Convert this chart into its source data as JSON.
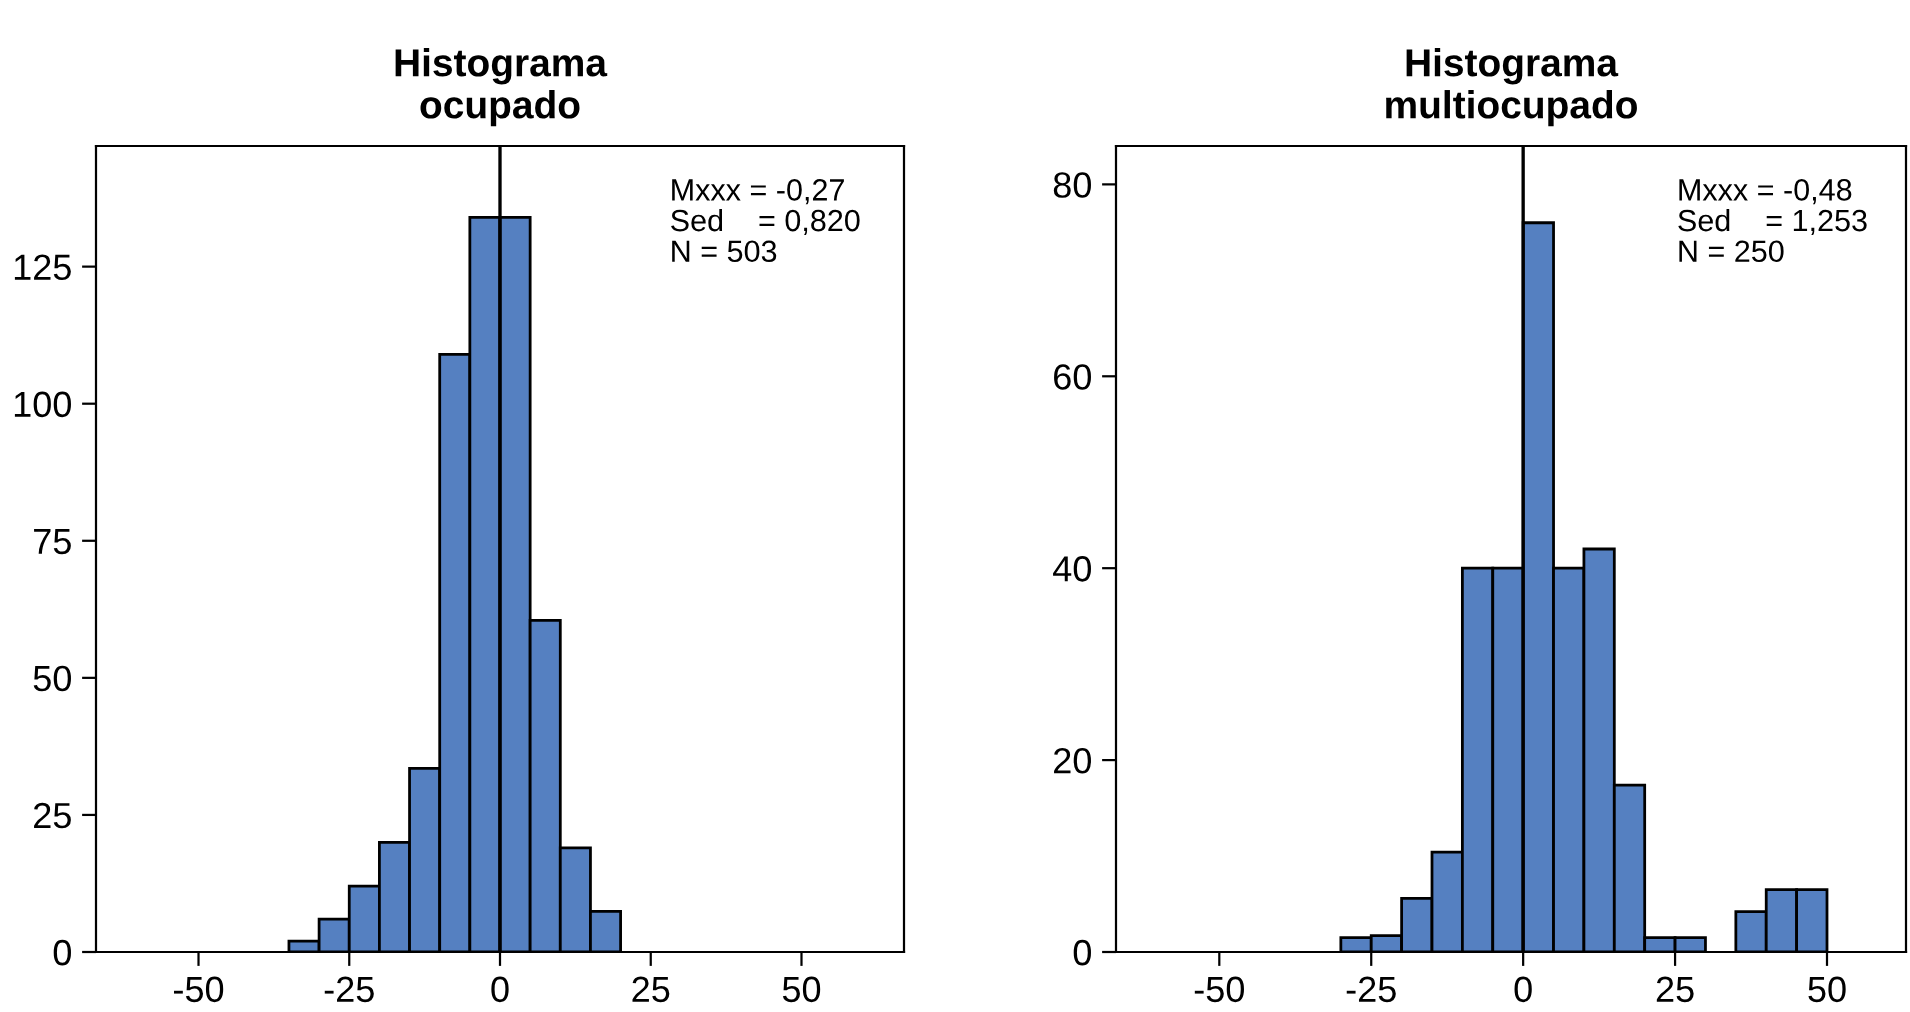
{
  "chart_data": [
    {
      "type": "histogram",
      "title": "Histograma\nocupado",
      "color": "#5580c1",
      "bins": [
        -35,
        -30,
        -25,
        -20,
        -15,
        -10,
        -5,
        0,
        5,
        10,
        15,
        20
      ],
      "values": [
        2,
        6,
        12,
        20,
        33.5,
        109,
        134,
        134,
        60.5,
        19,
        7.4
      ],
      "xlim": [
        -67,
        67
      ],
      "ylim": [
        0,
        147
      ],
      "xticks": [
        -50,
        -25,
        0,
        25,
        50
      ],
      "yticks": [
        0,
        25,
        50,
        75,
        100,
        125
      ],
      "ref_lines": [
        {
          "axis": "x",
          "value": 0,
          "color": "#000000"
        }
      ],
      "annotations": [
        "Mxxx = -0,27\nSed    = 0,820\nN = 503"
      ],
      "grid": false,
      "legend": false
    },
    {
      "type": "histogram",
      "title": "Histograma\nmultiocupado",
      "color": "#5580c1",
      "bins": [
        -30,
        -25,
        -20,
        -15,
        -10,
        -5,
        0,
        5,
        10,
        15,
        20,
        25,
        30,
        35,
        40,
        45,
        50
      ],
      "values": [
        1.5,
        1.7,
        5.6,
        10.4,
        40,
        40,
        76,
        40,
        42,
        17.4,
        1.5,
        1.5,
        null,
        4.2,
        6.5,
        6.5
      ],
      "xlim": [
        -67,
        63
      ],
      "ylim": [
        0,
        84
      ],
      "xticks": [
        -50,
        -25,
        0,
        25,
        50
      ],
      "yticks": [
        0,
        20,
        40,
        60,
        80
      ],
      "ref_lines": [
        {
          "axis": "x",
          "value": 0,
          "color": "#000000"
        }
      ],
      "annotations": [
        "Mxxx = -0,48\nSed    = 1,253\nN = 250"
      ],
      "grid": false,
      "legend": false
    }
  ]
}
